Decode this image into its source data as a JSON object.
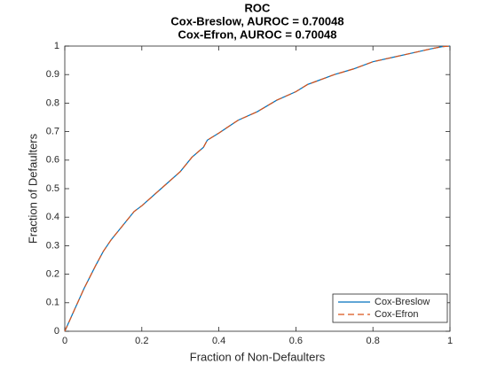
{
  "chart_data": {
    "type": "line",
    "title": [
      "ROC",
      "Cox-Breslow, AUROC = 0.70048",
      "Cox-Efron, AUROC = 0.70048"
    ],
    "xlabel": "Fraction of Non-Defaulters",
    "ylabel": "Fraction of Defaulters",
    "x": [
      0,
      0.02,
      0.05,
      0.08,
      0.1,
      0.12,
      0.15,
      0.18,
      0.2,
      0.25,
      0.3,
      0.33,
      0.36,
      0.37,
      0.4,
      0.45,
      0.5,
      0.55,
      0.6,
      0.63,
      0.65,
      0.7,
      0.75,
      0.8,
      0.85,
      0.9,
      0.95,
      0.98,
      1
    ],
    "series": [
      {
        "name": "Cox-Breslow",
        "color": "#0072bd",
        "dash": "solid",
        "values": [
          0,
          0.06,
          0.15,
          0.23,
          0.28,
          0.32,
          0.37,
          0.42,
          0.44,
          0.5,
          0.56,
          0.61,
          0.645,
          0.67,
          0.695,
          0.74,
          0.77,
          0.81,
          0.84,
          0.865,
          0.875,
          0.9,
          0.92,
          0.945,
          0.96,
          0.975,
          0.99,
          0.998,
          1
        ]
      },
      {
        "name": "Cox-Efron",
        "color": "#d95319",
        "dash": "dashed",
        "values": [
          0,
          0.06,
          0.15,
          0.23,
          0.28,
          0.32,
          0.37,
          0.42,
          0.44,
          0.5,
          0.56,
          0.61,
          0.645,
          0.67,
          0.695,
          0.74,
          0.77,
          0.81,
          0.84,
          0.865,
          0.875,
          0.9,
          0.92,
          0.945,
          0.96,
          0.975,
          0.99,
          0.998,
          1
        ]
      }
    ],
    "xlim": [
      0,
      1
    ],
    "xticks": [
      0,
      0.2,
      0.4,
      0.6,
      0.8,
      1
    ],
    "ylim": [
      0,
      1
    ],
    "yticks": [
      0,
      0.1,
      0.2,
      0.3,
      0.4,
      0.5,
      0.6,
      0.7,
      0.8,
      0.9,
      1
    ],
    "grid": false,
    "legend": "lower right"
  }
}
